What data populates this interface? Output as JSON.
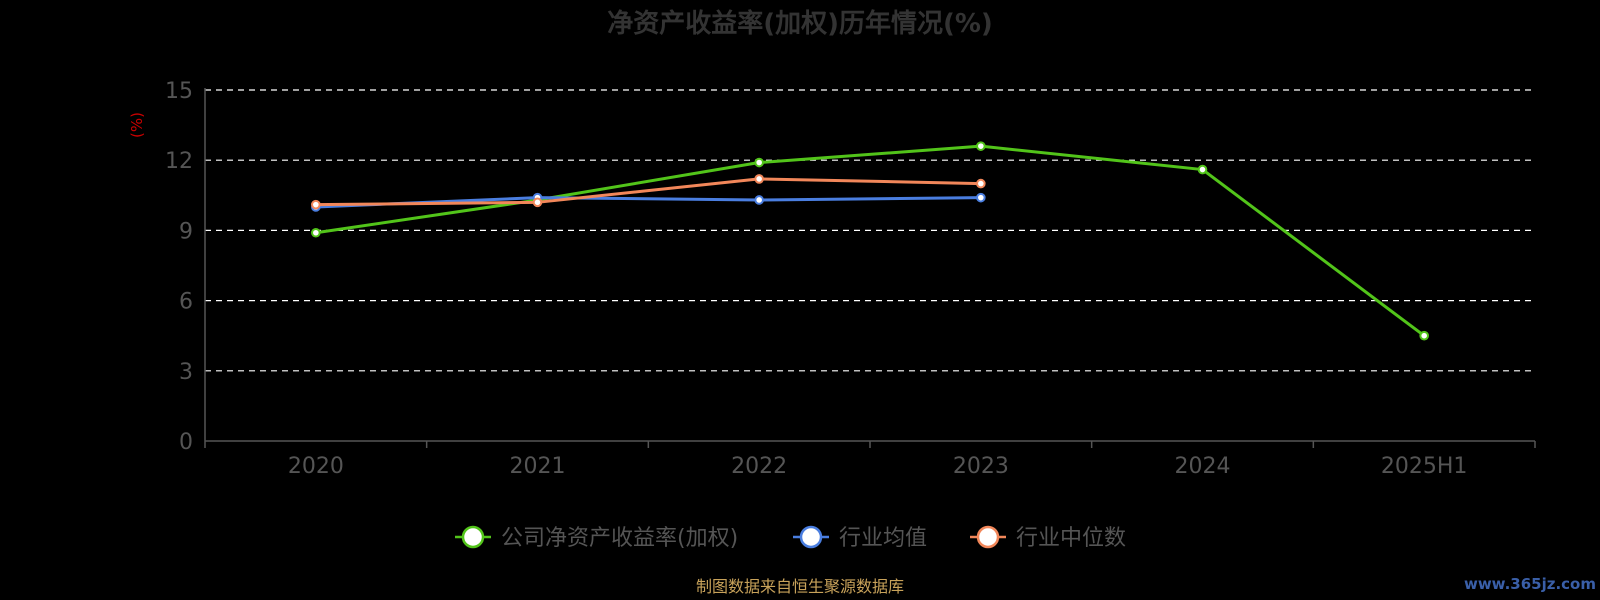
{
  "colors": {
    "background": "#000000",
    "axis": "#555555",
    "grid": "#ffffff",
    "ylabel": "#cc0000",
    "source": "#c8a25a",
    "watermark": "#3a5fa8"
  },
  "chart_data": {
    "type": "line",
    "title": "净资产收益率(加权)历年情况(%)",
    "xlabel": "",
    "ylabel": "(%)",
    "categories": [
      "2020",
      "2021",
      "2022",
      "2023",
      "2024",
      "2025H1"
    ],
    "ylim": [
      0,
      15
    ],
    "yticks": [
      0,
      3,
      6,
      9,
      12,
      15
    ],
    "grid": true,
    "legend_position": "bottom",
    "series": [
      {
        "name": "公司净资产收益率(加权)",
        "color": "#52c41a",
        "values": [
          8.9,
          10.3,
          11.9,
          12.6,
          11.6,
          4.5
        ]
      },
      {
        "name": "行业均值",
        "color": "#4a7ee0",
        "values": [
          10.0,
          10.4,
          10.3,
          10.4,
          null,
          null
        ]
      },
      {
        "name": "行业中位数",
        "color": "#f2875a",
        "values": [
          10.1,
          10.2,
          11.2,
          11.0,
          null,
          null
        ]
      }
    ]
  },
  "footer": {
    "source": "制图数据来自恒生聚源数据库",
    "watermark": "www.365jz.com"
  }
}
